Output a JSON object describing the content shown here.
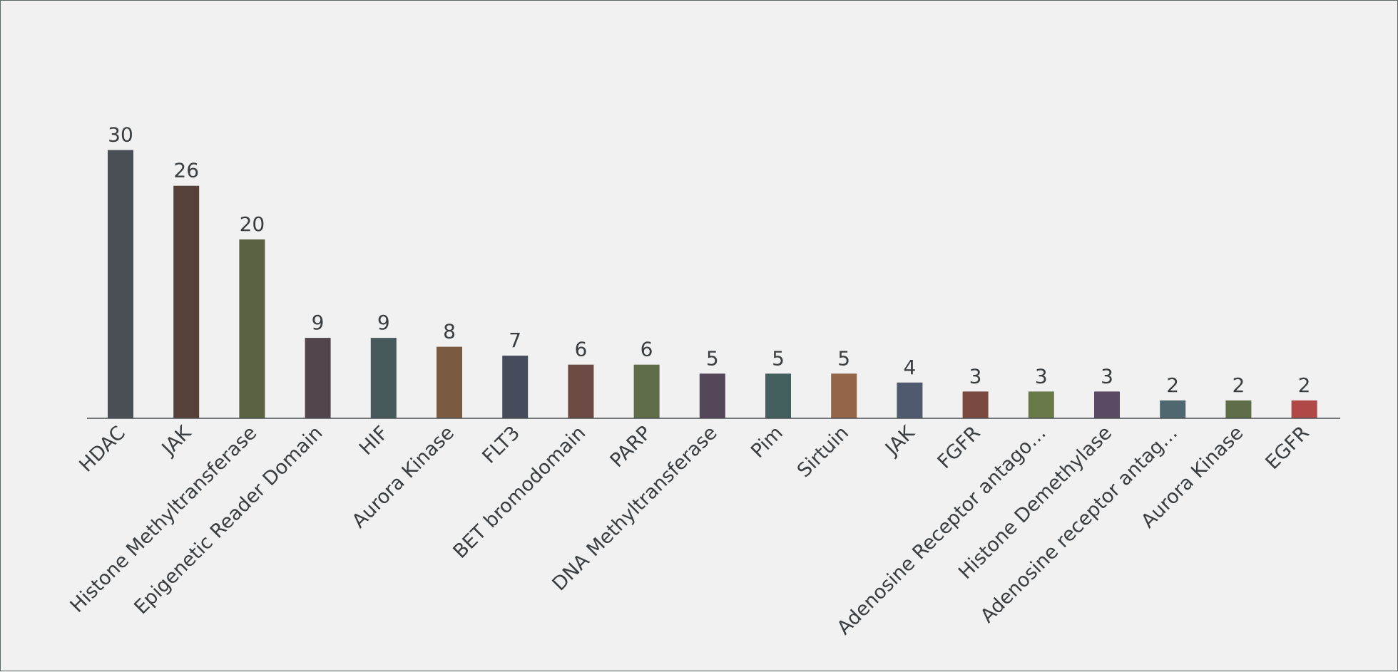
{
  "chart_data": {
    "type": "bar",
    "title": "",
    "xlabel": "",
    "ylabel": "",
    "ylim": [
      0,
      30
    ],
    "grid": false,
    "legend": "none",
    "categories": [
      "HDAC",
      "JAK",
      "Histone Methyltransferase",
      "Epigenetic Reader Domain",
      "HIF",
      "Aurora Kinase",
      "FLT3",
      "BET bromodomain",
      "PARP",
      "DNA Methyltransferase",
      "Pim",
      "Sirtuin",
      "JAK",
      "FGFR",
      "Adenosine Receptor antago…",
      "Histone Demethylase",
      "Adenosine receptor antag…",
      "Aurora Kinase",
      "EGFR"
    ],
    "values": [
      30,
      26,
      20,
      9,
      9,
      8,
      7,
      6,
      6,
      5,
      5,
      5,
      4,
      3,
      3,
      3,
      2,
      2,
      2
    ],
    "colors": [
      "#4a4f55",
      "#56413a",
      "#5b6244",
      "#52454b",
      "#47595a",
      "#7a5a40",
      "#474c5c",
      "#6e4a44",
      "#5f6c4a",
      "#54475a",
      "#43605f",
      "#946548",
      "#4f5a6e",
      "#7a4a40",
      "#687848",
      "#5a4a62",
      "#4f6870",
      "#5f6e48",
      "#b04848"
    ]
  }
}
